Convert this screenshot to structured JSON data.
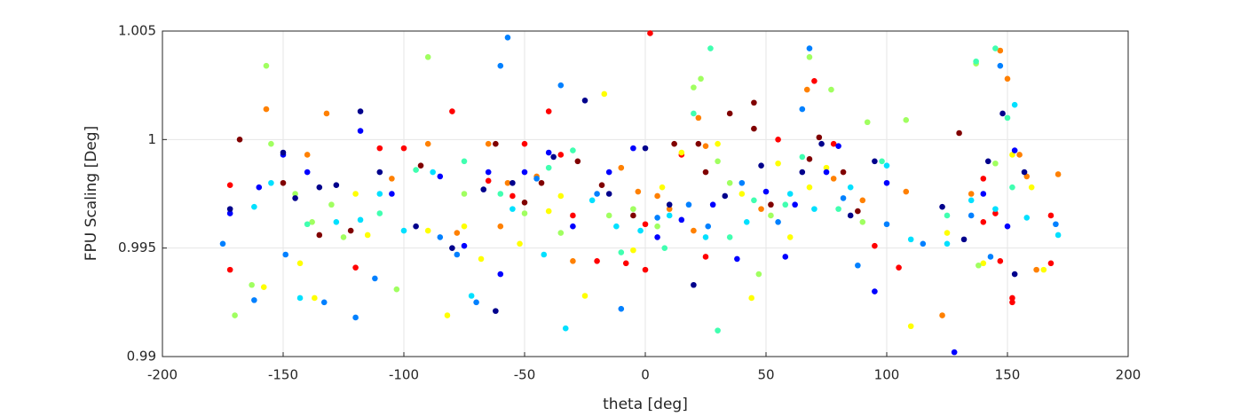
{
  "chart_data": {
    "type": "scatter",
    "xlabel": "theta [deg]",
    "ylabel": "FPU Scaling [Deg]",
    "xlim": [
      -200,
      200
    ],
    "xticks": [
      -200,
      -150,
      -100,
      -50,
      0,
      50,
      100,
      150,
      200
    ],
    "ylim": [
      0.99,
      1.005
    ],
    "yticks": [
      0.99,
      0.995,
      1,
      1.005
    ],
    "grid": true,
    "series": [
      {
        "color": "#ff0000",
        "x": [
          2,
          -172,
          -172,
          -80,
          -40,
          -50,
          -100,
          -120,
          -110,
          -35,
          -20,
          0,
          0,
          15,
          25,
          55,
          70,
          78,
          95,
          105,
          140,
          145,
          147,
          152,
          152,
          168,
          168,
          140,
          -30,
          -55,
          -65,
          -8
        ],
        "values": [
          1.0049,
          0.9979,
          0.994,
          1.0013,
          1.0013,
          0.9998,
          0.9996,
          0.9941,
          0.9996,
          0.9993,
          0.9944,
          0.9961,
          0.994,
          0.9993,
          0.9946,
          1.0,
          1.0027,
          0.9998,
          0.9951,
          0.9941,
          0.9962,
          0.9966,
          0.9944,
          0.9927,
          0.9925,
          0.9943,
          0.9965,
          0.9982,
          0.9965,
          0.9974,
          0.9981,
          0.9943
        ]
      },
      {
        "color": "#800000",
        "x": [
          -168,
          -135,
          -93,
          -43,
          -28,
          -18,
          12,
          22,
          35,
          45,
          45,
          68,
          72,
          88,
          130,
          -150,
          -122,
          -62,
          -50,
          -5,
          25,
          52,
          82
        ],
        "values": [
          1.0,
          0.9956,
          0.9988,
          0.998,
          0.999,
          0.9979,
          0.9998,
          0.9998,
          1.0012,
          1.0017,
          1.0005,
          0.9991,
          1.0001,
          0.9967,
          1.0003,
          0.998,
          0.9958,
          0.9998,
          0.9971,
          0.9965,
          0.9985,
          0.997,
          0.9985
        ]
      },
      {
        "color": "#ff8000",
        "x": [
          -157,
          -132,
          -140,
          -105,
          -90,
          -78,
          -65,
          -57,
          -45,
          -30,
          -10,
          -3,
          5,
          10,
          22,
          25,
          20,
          48,
          67,
          78,
          90,
          108,
          123,
          147,
          150,
          155,
          158,
          162,
          171,
          135,
          -60
        ],
        "values": [
          1.0014,
          1.0012,
          0.9993,
          0.9982,
          0.9998,
          0.9957,
          0.9998,
          0.998,
          0.9983,
          0.9944,
          0.9987,
          0.9976,
          0.9974,
          0.9968,
          1.001,
          0.9997,
          0.9958,
          0.9968,
          1.0023,
          0.9982,
          0.9972,
          0.9976,
          0.9919,
          1.0041,
          1.0028,
          0.9993,
          0.9983,
          0.994,
          0.9984,
          0.9975,
          0.996
        ]
      },
      {
        "color": "#ffff00",
        "x": [
          -158,
          -143,
          -137,
          -115,
          -90,
          -82,
          -68,
          -52,
          -40,
          -35,
          -17,
          -5,
          7,
          15,
          30,
          40,
          44,
          55,
          68,
          75,
          110,
          125,
          140,
          152,
          160,
          165,
          -120,
          -75,
          -25,
          60
        ],
        "values": [
          0.9932,
          0.9943,
          0.9927,
          0.9956,
          0.9958,
          0.9919,
          0.9945,
          0.9952,
          0.9967,
          0.9974,
          1.0021,
          0.9949,
          0.9978,
          0.9994,
          0.9998,
          0.9975,
          0.9927,
          0.9989,
          0.9978,
          0.9987,
          0.9914,
          0.9957,
          0.9943,
          0.9993,
          0.9978,
          0.994,
          0.9975,
          0.996,
          0.9928,
          0.9955
        ]
      },
      {
        "color": "#a0ff60",
        "x": [
          -157,
          -155,
          -145,
          -138,
          -130,
          -125,
          -103,
          -90,
          -75,
          -50,
          -35,
          -15,
          -5,
          5,
          20,
          23,
          30,
          35,
          47,
          52,
          68,
          77,
          92,
          108,
          137,
          145,
          138,
          -170,
          -163,
          90
        ],
        "values": [
          1.0034,
          0.9998,
          0.9975,
          0.9962,
          0.997,
          0.9955,
          0.9931,
          1.0038,
          0.9975,
          0.9966,
          0.9957,
          0.9965,
          0.9968,
          0.996,
          1.0024,
          1.0028,
          0.999,
          0.998,
          0.9938,
          0.9965,
          1.0038,
          1.0023,
          1.0008,
          1.0009,
          1.0035,
          0.9989,
          0.9942,
          0.9919,
          0.9933,
          0.9962
        ]
      },
      {
        "color": "#40ffb0",
        "x": [
          -140,
          -110,
          -95,
          -60,
          -30,
          -10,
          8,
          20,
          27,
          30,
          45,
          58,
          65,
          80,
          98,
          125,
          137,
          145,
          150,
          152,
          -75,
          -40,
          35
        ],
        "values": [
          0.9961,
          0.9966,
          0.9986,
          0.9975,
          0.9995,
          0.9948,
          0.995,
          1.0012,
          1.0042,
          0.9912,
          0.9972,
          0.997,
          0.9992,
          0.9968,
          0.999,
          0.9965,
          1.0036,
          1.0042,
          1.001,
          0.9978,
          0.999,
          0.9987,
          0.9955
        ]
      },
      {
        "color": "#00e0ff",
        "x": [
          -162,
          -155,
          -143,
          -128,
          -118,
          -110,
          -100,
          -88,
          -72,
          -55,
          -42,
          -33,
          -22,
          -12,
          -2,
          10,
          25,
          42,
          60,
          70,
          85,
          100,
          110,
          125,
          135,
          145,
          153,
          158,
          171
        ],
        "values": [
          0.9969,
          0.998,
          0.9927,
          0.9962,
          0.9963,
          0.9975,
          0.9958,
          0.9985,
          0.9928,
          0.9968,
          0.9947,
          0.9913,
          0.9972,
          0.996,
          0.9958,
          0.9965,
          0.9955,
          0.9962,
          0.9975,
          0.9968,
          0.9978,
          0.9988,
          0.9954,
          0.9952,
          0.9972,
          0.9968,
          1.0016,
          0.9964,
          0.9956
        ]
      },
      {
        "color": "#0080ff",
        "x": [
          -175,
          -162,
          -149,
          -133,
          -120,
          -112,
          -85,
          -78,
          -70,
          -60,
          -57,
          -45,
          -35,
          -20,
          -10,
          5,
          18,
          26,
          40,
          55,
          65,
          68,
          82,
          88,
          100,
          115,
          135,
          143,
          147,
          170
        ],
        "values": [
          0.9952,
          0.9926,
          0.9947,
          0.9925,
          0.9918,
          0.9936,
          0.9955,
          0.9947,
          0.9925,
          1.0034,
          1.0047,
          0.9982,
          1.0025,
          0.9975,
          0.9922,
          0.9964,
          0.997,
          0.996,
          0.998,
          0.9962,
          1.0014,
          1.0042,
          0.9973,
          0.9942,
          0.9961,
          0.9952,
          0.9965,
          0.9946,
          1.0034,
          0.9961
        ]
      },
      {
        "color": "#0000ff",
        "x": [
          -172,
          -160,
          -150,
          -140,
          -118,
          -105,
          -85,
          -75,
          -65,
          -50,
          -40,
          -30,
          -15,
          -5,
          5,
          15,
          28,
          38,
          50,
          58,
          62,
          75,
          80,
          95,
          100,
          128,
          140,
          150,
          153,
          -60
        ],
        "values": [
          0.9966,
          0.9978,
          0.9993,
          0.9985,
          1.0004,
          0.9975,
          0.9983,
          0.9951,
          0.9985,
          0.9985,
          0.9994,
          0.996,
          0.9985,
          0.9996,
          0.9955,
          0.9963,
          0.997,
          0.9945,
          0.9976,
          0.9946,
          0.997,
          0.9985,
          0.9997,
          0.993,
          0.998,
          0.9902,
          0.9975,
          0.996,
          0.9995,
          0.9938
        ]
      },
      {
        "color": "#00008c",
        "x": [
          -172,
          -150,
          -145,
          -135,
          -128,
          -118,
          -110,
          -95,
          -80,
          -67,
          -62,
          -55,
          -38,
          -25,
          -15,
          0,
          10,
          20,
          33,
          48,
          65,
          73,
          85,
          95,
          123,
          132,
          142,
          148,
          153,
          157
        ],
        "values": [
          0.9968,
          0.9994,
          0.9973,
          0.9978,
          0.9979,
          1.0013,
          0.9985,
          0.996,
          0.995,
          0.9977,
          0.9921,
          0.998,
          0.9992,
          1.0018,
          0.9975,
          0.9996,
          0.997,
          0.9933,
          0.9974,
          0.9988,
          0.9985,
          0.9998,
          0.9965,
          0.999,
          0.9969,
          0.9954,
          0.999,
          1.0012,
          0.9938,
          0.9985
        ]
      }
    ]
  }
}
